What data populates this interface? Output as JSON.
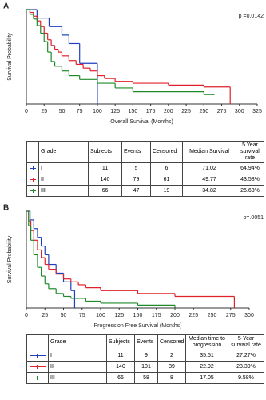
{
  "chart_data": [
    {
      "type": "step",
      "panel_label": "A",
      "p_value": "p =0.0142",
      "ylabel": "Survival Probability",
      "xlabel": "Overall Survival (Months)",
      "xlim": [
        0,
        325
      ],
      "xticks": [
        0,
        25,
        50,
        75,
        100,
        125,
        150,
        175,
        200,
        225,
        250,
        275,
        300,
        325
      ],
      "ylim": [
        0,
        1
      ],
      "series": [
        {
          "color": "#1f3fbf",
          "x": [
            0,
            15,
            32,
            50,
            60,
            75,
            100
          ],
          "values": [
            1,
            0.91,
            0.82,
            0.73,
            0.64,
            0.43,
            0
          ]
        },
        {
          "color": "#e0202a",
          "x": [
            0,
            5,
            10,
            15,
            20,
            25,
            30,
            35,
            40,
            45,
            50,
            60,
            70,
            80,
            90,
            100,
            110,
            125,
            150,
            200,
            250,
            287
          ],
          "values": [
            1,
            0.97,
            0.93,
            0.88,
            0.82,
            0.75,
            0.68,
            0.62,
            0.58,
            0.55,
            0.51,
            0.46,
            0.42,
            0.38,
            0.35,
            0.3,
            0.27,
            0.24,
            0.22,
            0.2,
            0.18,
            0
          ]
        },
        {
          "color": "#1f8a2a",
          "x": [
            0,
            5,
            10,
            15,
            20,
            25,
            30,
            35,
            40,
            50,
            60,
            75,
            100,
            125,
            150,
            250,
            265
          ],
          "values": [
            1,
            0.95,
            0.9,
            0.83,
            0.75,
            0.66,
            0.55,
            0.45,
            0.4,
            0.35,
            0.3,
            0.26,
            0.22,
            0.17,
            0.13,
            0.1,
            0.1
          ]
        }
      ]
    },
    {
      "type": "step",
      "panel_label": "B",
      "p_value": "p=.0051",
      "ylabel": "Survival Probability",
      "xlabel": "Progression Free Survival (Months)",
      "xlim": [
        0,
        300
      ],
      "xticks": [
        0,
        25,
        50,
        75,
        100,
        125,
        150,
        175,
        200,
        225,
        250,
        275,
        300
      ],
      "ylim": [
        0,
        1
      ],
      "series": [
        {
          "color": "#1f3fbf",
          "x": [
            0,
            5,
            10,
            15,
            20,
            25,
            30,
            40,
            50,
            60,
            65
          ],
          "values": [
            1,
            0.91,
            0.82,
            0.73,
            0.64,
            0.55,
            0.45,
            0.36,
            0.27,
            0.18,
            0
          ]
        },
        {
          "color": "#e0202a",
          "x": [
            0,
            3,
            6,
            10,
            15,
            20,
            25,
            30,
            40,
            50,
            60,
            70,
            80,
            100,
            150,
            200,
            280
          ],
          "values": [
            1,
            0.9,
            0.8,
            0.7,
            0.6,
            0.52,
            0.45,
            0.4,
            0.35,
            0.3,
            0.27,
            0.24,
            0.21,
            0.18,
            0.15,
            0.12,
            0
          ]
        },
        {
          "color": "#1f8a2a",
          "x": [
            0,
            3,
            6,
            10,
            15,
            20,
            25,
            30,
            40,
            50,
            60,
            80,
            100,
            150,
            200
          ],
          "values": [
            1,
            0.85,
            0.7,
            0.55,
            0.42,
            0.33,
            0.25,
            0.2,
            0.15,
            0.12,
            0.1,
            0.07,
            0.05,
            0.03,
            0
          ]
        }
      ]
    }
  ],
  "tables": [
    {
      "header": [
        "Grade",
        "Subjects",
        "Events",
        "Censored",
        "Median Survival",
        "5 Year survival rate"
      ],
      "row_colors": [
        "#1f3fbf",
        "#e0202a",
        "#1f8a2a"
      ],
      "rows": [
        [
          "I",
          "11",
          "5",
          "6",
          "71.02",
          "64.94%"
        ],
        [
          "II",
          "140",
          "79",
          "61",
          "49.77",
          "43.58%"
        ],
        [
          "III",
          "66",
          "47",
          "19",
          "34.82",
          "26.63%"
        ]
      ]
    },
    {
      "header": [
        "Grade",
        "Subjects",
        "Events",
        "Censored",
        "Median time to progression",
        "5-Year survival rate"
      ],
      "row_colors": [
        "#1f3fbf",
        "#e0202a",
        "#1f8a2a"
      ],
      "rows": [
        [
          "I",
          "11",
          "9",
          "2",
          "35.51",
          "27.27%"
        ],
        [
          "II",
          "140",
          "101",
          "39",
          "22.92",
          "23.39%"
        ],
        [
          "III",
          "66",
          "58",
          "8",
          "17.05",
          "9.58%"
        ]
      ]
    }
  ]
}
